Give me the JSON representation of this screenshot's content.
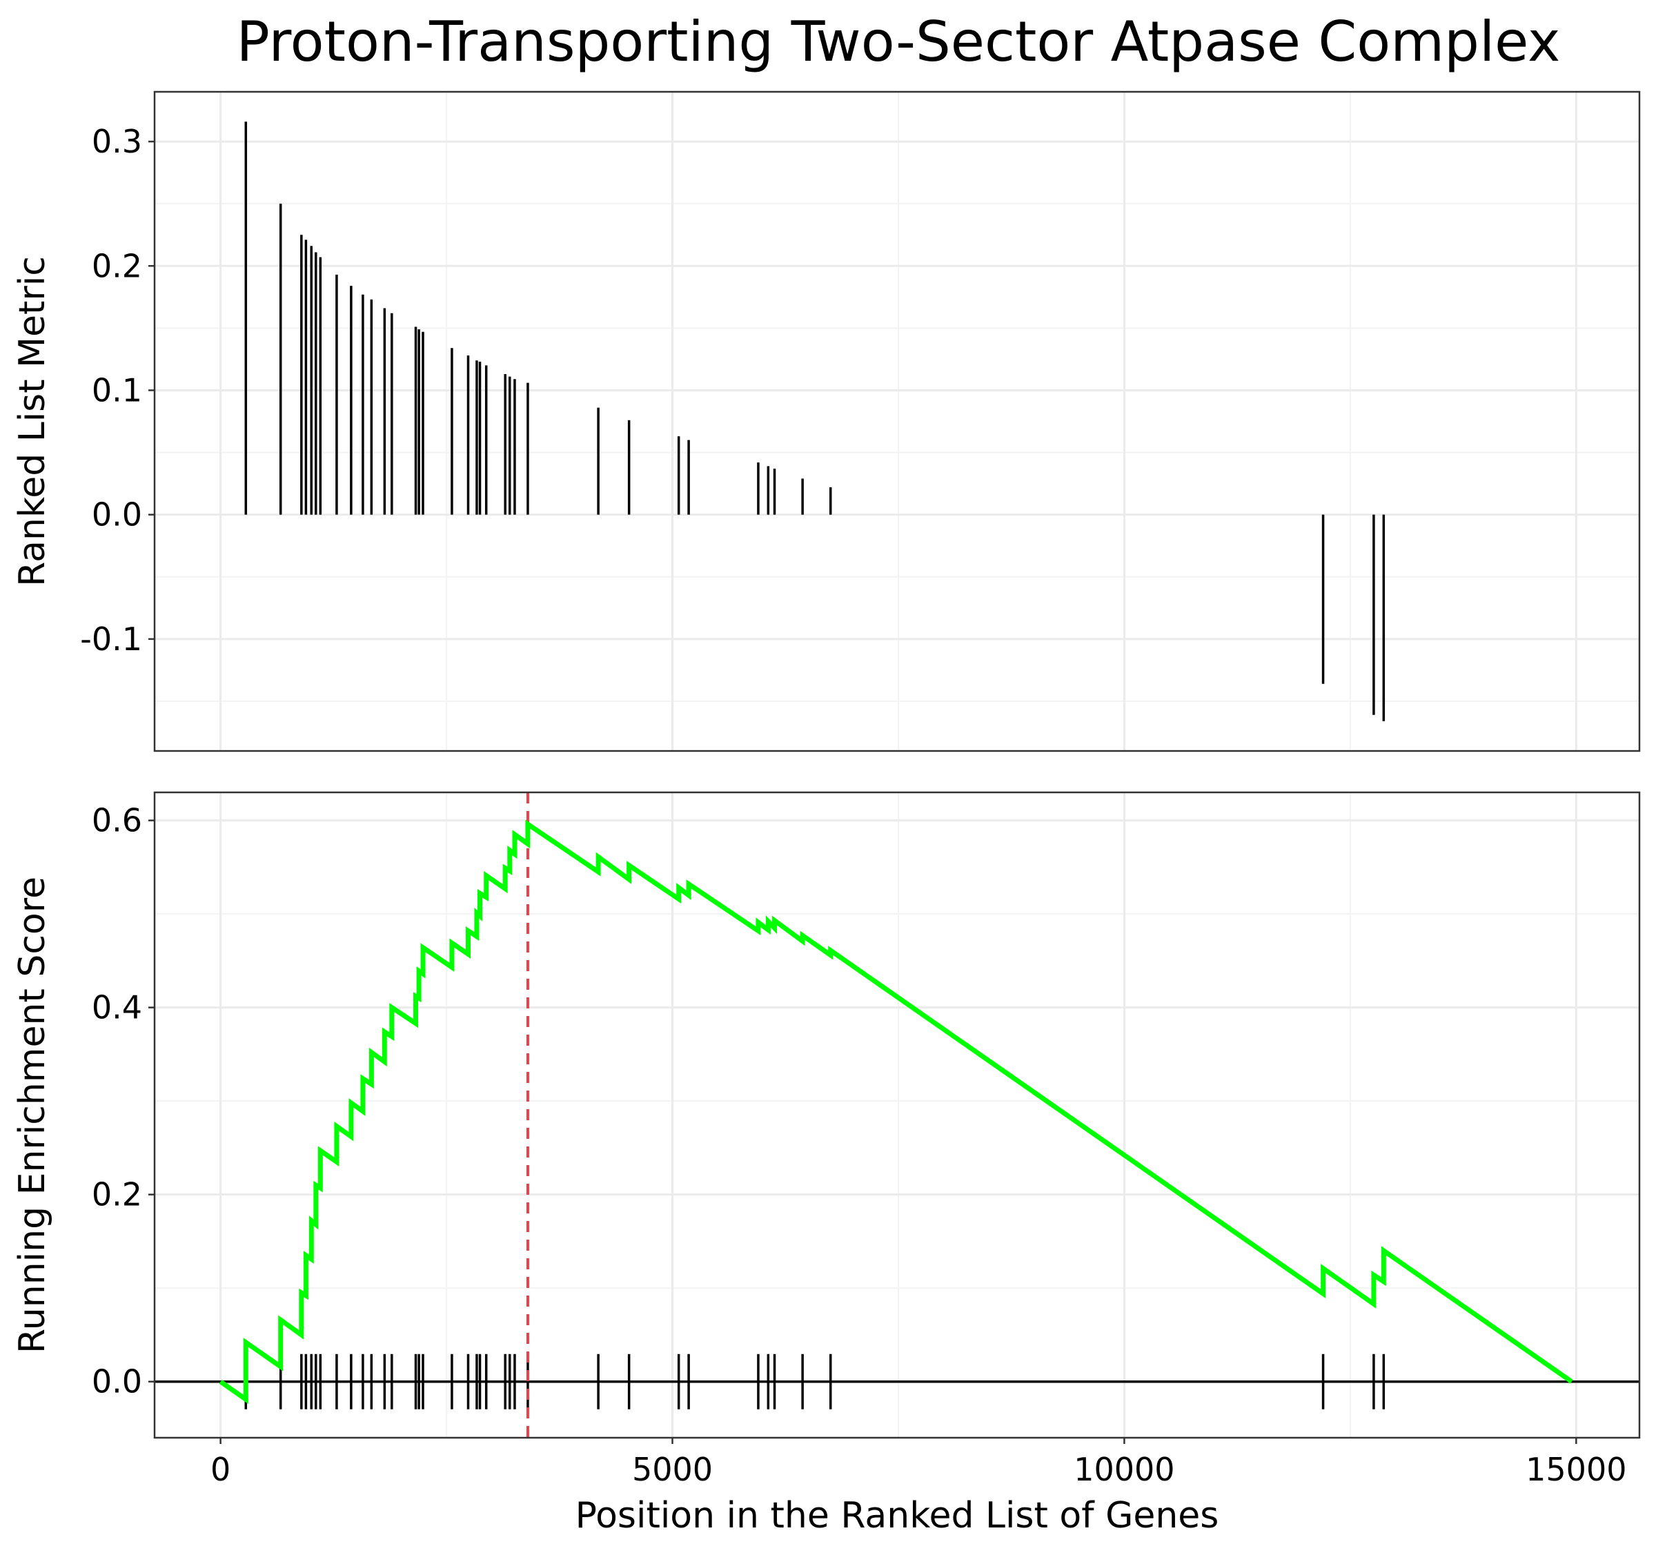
{
  "title": "Proton-Transporting Two-Sector Atpase Complex",
  "xlabel": "Position in the Ranked List of Genes",
  "colors": {
    "curve": "#00ff00",
    "peak_line": "#e8434a",
    "bars": "#000000"
  },
  "chart_data": [
    {
      "type": "bar",
      "panel": "ranked-list-metric",
      "ylabel": "Ranked List Metric",
      "xlim": [
        -730,
        15700
      ],
      "ylim": [
        -0.19,
        0.34
      ],
      "yticks": [
        -0.1,
        0.0,
        0.1,
        0.2,
        0.3
      ],
      "ytick_labels": [
        "-0.1",
        "0.0",
        "0.1",
        "0.2",
        "0.3"
      ],
      "grid": true,
      "hits": [
        {
          "x": 280,
          "y": 0.316
        },
        {
          "x": 665,
          "y": 0.25
        },
        {
          "x": 895,
          "y": 0.225
        },
        {
          "x": 945,
          "y": 0.221
        },
        {
          "x": 1005,
          "y": 0.216
        },
        {
          "x": 1055,
          "y": 0.211
        },
        {
          "x": 1105,
          "y": 0.207
        },
        {
          "x": 1285,
          "y": 0.193
        },
        {
          "x": 1445,
          "y": 0.184
        },
        {
          "x": 1575,
          "y": 0.177
        },
        {
          "x": 1670,
          "y": 0.173
        },
        {
          "x": 1815,
          "y": 0.166
        },
        {
          "x": 1895,
          "y": 0.162
        },
        {
          "x": 2160,
          "y": 0.151
        },
        {
          "x": 2195,
          "y": 0.149
        },
        {
          "x": 2240,
          "y": 0.147
        },
        {
          "x": 2560,
          "y": 0.134
        },
        {
          "x": 2740,
          "y": 0.128
        },
        {
          "x": 2835,
          "y": 0.124
        },
        {
          "x": 2870,
          "y": 0.123
        },
        {
          "x": 2940,
          "y": 0.12
        },
        {
          "x": 3150,
          "y": 0.113
        },
        {
          "x": 3200,
          "y": 0.111
        },
        {
          "x": 3255,
          "y": 0.109
        },
        {
          "x": 3400,
          "y": 0.106
        },
        {
          "x": 4180,
          "y": 0.086
        },
        {
          "x": 4520,
          "y": 0.076
        },
        {
          "x": 5070,
          "y": 0.063
        },
        {
          "x": 5180,
          "y": 0.06
        },
        {
          "x": 5950,
          "y": 0.042
        },
        {
          "x": 6060,
          "y": 0.039
        },
        {
          "x": 6130,
          "y": 0.037
        },
        {
          "x": 6440,
          "y": 0.029
        },
        {
          "x": 6750,
          "y": 0.022
        },
        {
          "x": 12200,
          "y": -0.136
        },
        {
          "x": 12760,
          "y": -0.161
        },
        {
          "x": 12870,
          "y": -0.166
        }
      ]
    },
    {
      "type": "line",
      "panel": "running-enrichment-score",
      "ylabel": "Running Enrichment Score",
      "xlim": [
        -730,
        15700
      ],
      "ylim": [
        -0.06,
        0.63
      ],
      "yticks": [
        0.0,
        0.2,
        0.4,
        0.6
      ],
      "ytick_labels": [
        "0.0",
        "0.2",
        "0.4",
        "0.6"
      ],
      "xticks": [
        0,
        5000,
        10000,
        15000
      ],
      "xtick_labels": [
        "0",
        "5000",
        "10000",
        "15000"
      ],
      "grid": true,
      "peak": {
        "x": 3400,
        "es": 0.596
      },
      "end": 14950,
      "steps": [
        {
          "x": 280,
          "before": -0.019,
          "after": 0.042
        },
        {
          "x": 665,
          "before": 0.016,
          "after": 0.066
        },
        {
          "x": 895,
          "before": 0.05,
          "after": 0.095
        },
        {
          "x": 945,
          "before": 0.092,
          "after": 0.135
        },
        {
          "x": 1005,
          "before": 0.131,
          "after": 0.172
        },
        {
          "x": 1055,
          "before": 0.168,
          "after": 0.21
        },
        {
          "x": 1105,
          "before": 0.207,
          "after": 0.247
        },
        {
          "x": 1285,
          "before": 0.235,
          "after": 0.273
        },
        {
          "x": 1445,
          "before": 0.262,
          "after": 0.298
        },
        {
          "x": 1575,
          "before": 0.289,
          "after": 0.324
        },
        {
          "x": 1670,
          "before": 0.318,
          "after": 0.352
        },
        {
          "x": 1815,
          "before": 0.342,
          "after": 0.374
        },
        {
          "x": 1895,
          "before": 0.369,
          "after": 0.4
        },
        {
          "x": 2160,
          "before": 0.383,
          "after": 0.412
        },
        {
          "x": 2195,
          "before": 0.41,
          "after": 0.439
        },
        {
          "x": 2240,
          "before": 0.436,
          "after": 0.464
        },
        {
          "x": 2560,
          "before": 0.443,
          "after": 0.469
        },
        {
          "x": 2740,
          "before": 0.457,
          "after": 0.482
        },
        {
          "x": 2835,
          "before": 0.476,
          "after": 0.501
        },
        {
          "x": 2870,
          "before": 0.498,
          "after": 0.522
        },
        {
          "x": 2940,
          "before": 0.518,
          "after": 0.541
        },
        {
          "x": 3150,
          "before": 0.527,
          "after": 0.549
        },
        {
          "x": 3200,
          "before": 0.546,
          "after": 0.568
        },
        {
          "x": 3255,
          "before": 0.564,
          "after": 0.585
        },
        {
          "x": 3400,
          "before": 0.575,
          "after": 0.596
        },
        {
          "x": 4180,
          "before": 0.545,
          "after": 0.561
        },
        {
          "x": 4520,
          "before": 0.537,
          "after": 0.552
        },
        {
          "x": 5070,
          "before": 0.516,
          "after": 0.528
        },
        {
          "x": 5180,
          "before": 0.52,
          "after": 0.532
        },
        {
          "x": 5950,
          "before": 0.482,
          "after": 0.491
        },
        {
          "x": 6060,
          "before": 0.483,
          "after": 0.492
        },
        {
          "x": 6130,
          "before": 0.485,
          "after": 0.493
        },
        {
          "x": 6440,
          "before": 0.471,
          "after": 0.477
        },
        {
          "x": 6750,
          "before": 0.456,
          "after": 0.461
        },
        {
          "x": 12200,
          "before": 0.094,
          "after": 0.121
        },
        {
          "x": 12760,
          "before": 0.083,
          "after": 0.114
        },
        {
          "x": 12870,
          "before": 0.107,
          "after": 0.14
        }
      ]
    }
  ]
}
